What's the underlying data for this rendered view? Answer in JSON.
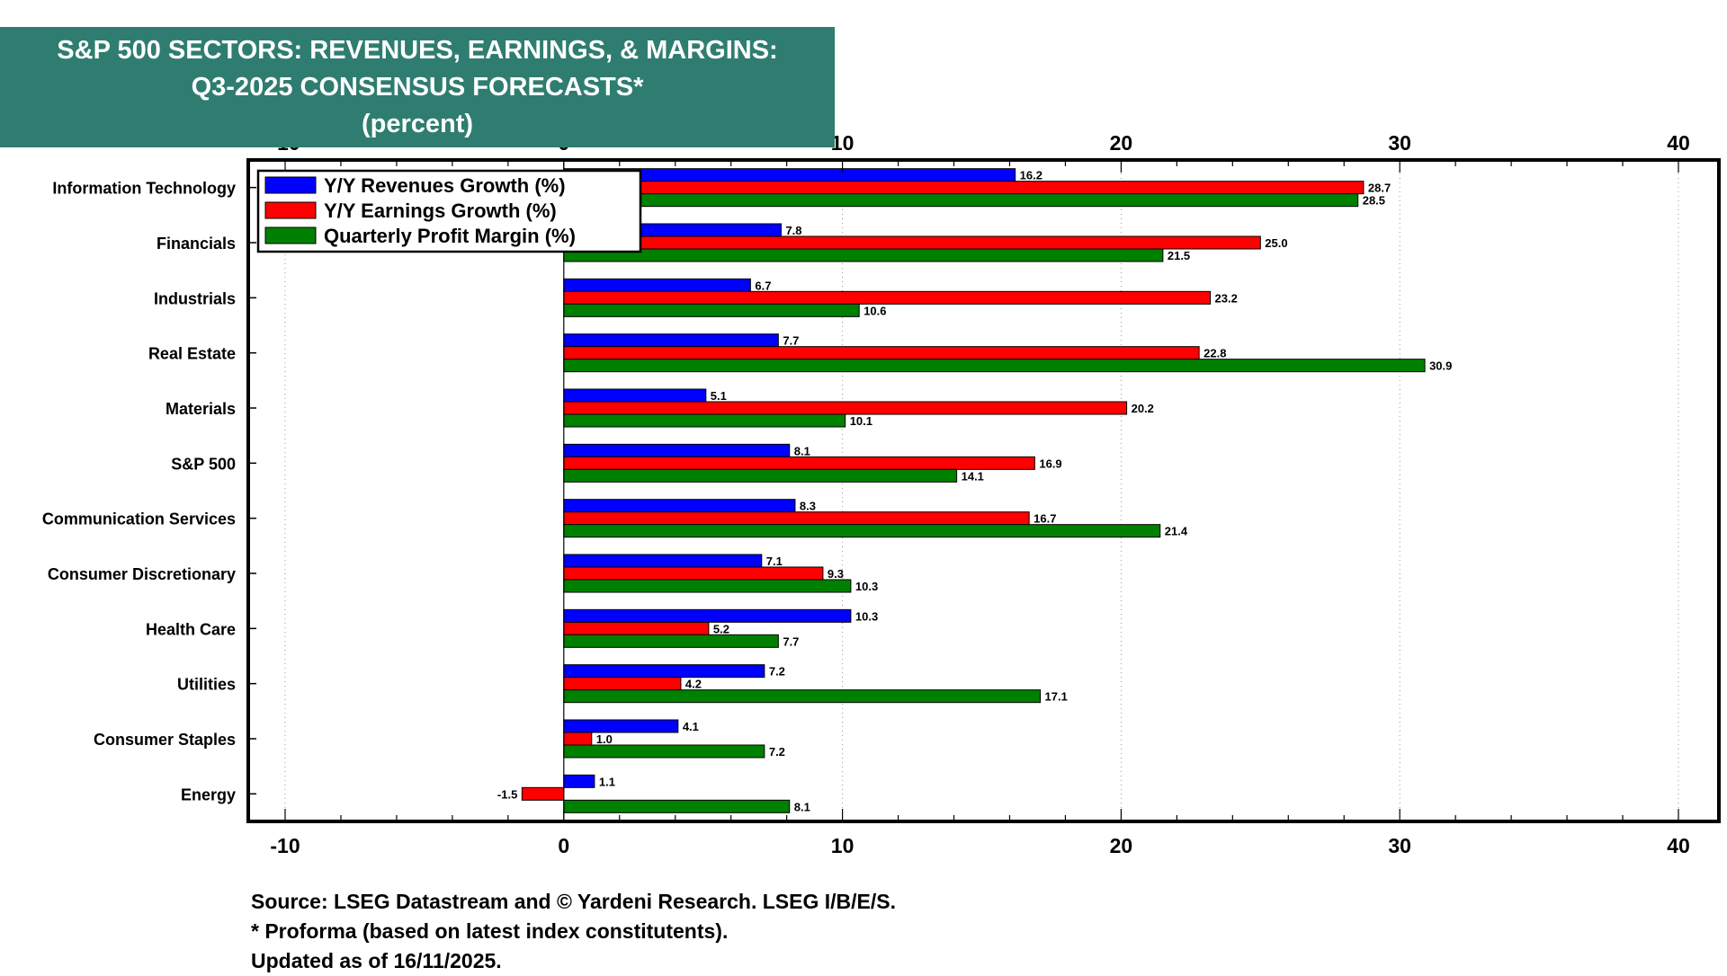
{
  "header": {
    "title_line1": "S&P 500 SECTORS: REVENUES, EARNINGS, & MARGINS:",
    "title_line2": "Q3-2025 CONSENSUS FORECASTS*",
    "title_line3": "(percent)"
  },
  "footer": {
    "source": "Source: LSEG Datastream and © Yardeni Research. LSEG I/B/E/S.",
    "note": "* Proforma (based on latest index constitutents).",
    "updated": "Updated as of 16/11/2025."
  },
  "colors": {
    "title_bg": "#2e7d70",
    "revenues": "#0000ff",
    "earnings": "#ff0000",
    "margin": "#008000"
  },
  "chart_data": {
    "type": "bar",
    "orientation": "horizontal",
    "title": "S&P 500 SECTORS: REVENUES, EARNINGS, & MARGINS: Q3-2025 CONSENSUS FORECASTS* (percent)",
    "xlim": [
      -10,
      40
    ],
    "xticks": [
      -10,
      0,
      10,
      20,
      30,
      40
    ],
    "xlabel": "",
    "ylabel": "",
    "grid": "vertical dotted",
    "legend_position": "top-left",
    "categories": [
      "Information Technology",
      "Financials",
      "Industrials",
      "Real Estate",
      "Materials",
      "S&P 500",
      "Communication Services",
      "Consumer Discretionary",
      "Health Care",
      "Utilities",
      "Consumer Staples",
      "Energy"
    ],
    "series": [
      {
        "name": "Y/Y Revenues Growth (%)",
        "color": "#0000ff",
        "values": [
          16.2,
          7.8,
          6.7,
          7.7,
          5.1,
          8.1,
          8.3,
          7.1,
          10.3,
          7.2,
          4.1,
          1.1
        ],
        "labels": [
          "16.2",
          "7.8",
          "6.7",
          "7.7",
          "5.1",
          "8.1",
          "8.3",
          "7.1",
          "10.3",
          "7.2",
          "4.1",
          "1.1"
        ]
      },
      {
        "name": "Y/Y Earnings Growth (%)",
        "color": "#ff0000",
        "values": [
          28.7,
          25.0,
          23.2,
          22.8,
          20.2,
          16.9,
          16.7,
          9.3,
          5.2,
          4.2,
          1.0,
          -1.5
        ],
        "labels": [
          "28.7",
          "25.0",
          "23.2",
          "22.8",
          "20.2",
          "16.9",
          "16.7",
          "9.3",
          "5.2",
          "4.2",
          "1.0",
          "-1.5"
        ]
      },
      {
        "name": "Quarterly Profit Margin (%)",
        "color": "#008000",
        "values": [
          28.5,
          21.5,
          10.6,
          30.9,
          10.1,
          14.1,
          21.4,
          10.3,
          7.7,
          17.1,
          7.2,
          8.1
        ],
        "labels": [
          "28.5",
          "21.5",
          "10.6",
          "30.9",
          "10.1",
          "14.1",
          "21.4",
          "10.3",
          "7.7",
          "17.1",
          "7.2",
          "8.1"
        ]
      }
    ]
  }
}
